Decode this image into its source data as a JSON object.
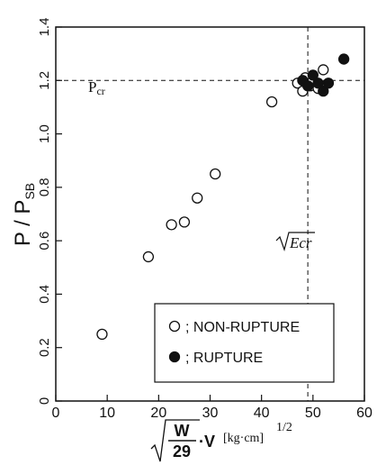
{
  "chart_data": {
    "type": "scatter",
    "xlim": [
      0,
      60
    ],
    "ylim": [
      0,
      1.4
    ],
    "x_ticks": [
      "0",
      "10",
      "20",
      "30",
      "40",
      "50",
      "60"
    ],
    "y_ticks": [
      "0",
      "0.2",
      "0.4",
      "0.6",
      "0.8",
      "1.0",
      "1.2",
      "1.4"
    ],
    "ylabel": {
      "main": "P / P",
      "sub": "SB"
    },
    "xlabel": {
      "num": "W",
      "den": "29",
      "mult": "·V",
      "unit": "[kg·cm]",
      "exp": "1/2"
    },
    "reference_lines": {
      "y": 1.2,
      "x": 49,
      "y_label": "Pcr",
      "y_label_sub": "cr",
      "x_label": "Ecr"
    },
    "legend": {
      "position": "bottom-right",
      "entries": [
        "; NON-RUPTURE",
        "; RUPTURE"
      ]
    },
    "series": [
      {
        "name": "NON-RUPTURE",
        "marker": "open",
        "points": [
          [
            9,
            0.25
          ],
          [
            18,
            0.54
          ],
          [
            22.5,
            0.66
          ],
          [
            25,
            0.67
          ],
          [
            27.5,
            0.76
          ],
          [
            31,
            0.85
          ],
          [
            42,
            1.12
          ],
          [
            47,
            1.19
          ],
          [
            48,
            1.16
          ],
          [
            48.5,
            1.21
          ],
          [
            49.5,
            1.18
          ],
          [
            50,
            1.2
          ],
          [
            51,
            1.17
          ],
          [
            52,
            1.24
          ]
        ]
      },
      {
        "name": "RUPTURE",
        "marker": "filled",
        "points": [
          [
            48,
            1.2
          ],
          [
            49,
            1.18
          ],
          [
            50,
            1.22
          ],
          [
            51,
            1.19
          ],
          [
            52,
            1.16
          ],
          [
            53,
            1.19
          ],
          [
            56,
            1.28
          ]
        ]
      }
    ]
  }
}
